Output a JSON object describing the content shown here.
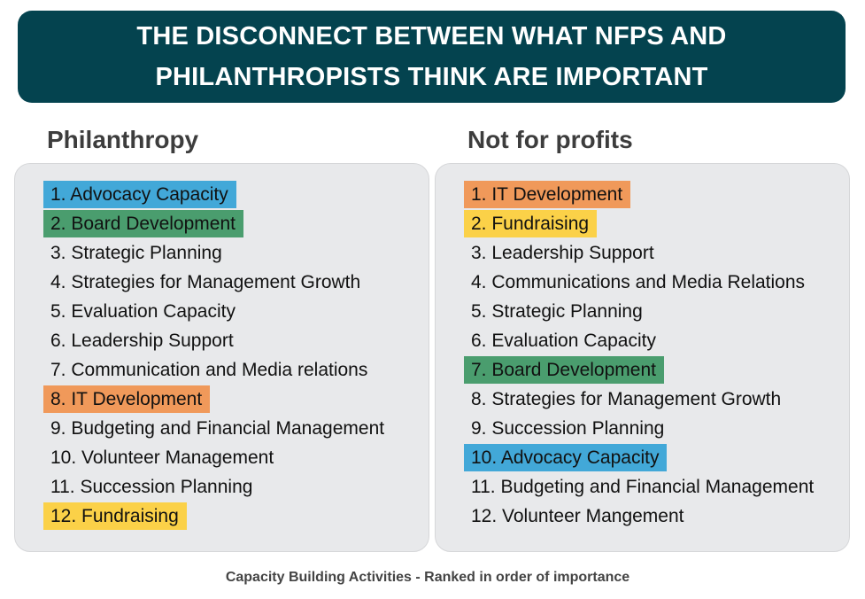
{
  "title": {
    "line1": "THE DISCONNECT BETWEEN WHAT NFPS AND",
    "line2": "PHILANTHROPISTS THINK ARE IMPORTANT"
  },
  "colors": {
    "title_bg": "#04434f",
    "advocacy": "#42a8d8",
    "board": "#4a9d6e",
    "it": "#f0995a",
    "fundraising": "#fbd148"
  },
  "philanthropy": {
    "heading": "Philanthropy",
    "items": [
      {
        "text": "1. Advocacy Capacity",
        "highlight": "#42a8d8"
      },
      {
        "text": "2. Board Development",
        "highlight": "#4a9d6e"
      },
      {
        "text": "3. Strategic Planning",
        "highlight": ""
      },
      {
        "text": "4. Strategies for Management Growth",
        "highlight": ""
      },
      {
        "text": "5. Evaluation Capacity",
        "highlight": ""
      },
      {
        "text": "6. Leadership Support",
        "highlight": ""
      },
      {
        "text": "7. Communication and Media relations",
        "highlight": ""
      },
      {
        "text": "8. IT Development",
        "highlight": "#f0995a"
      },
      {
        "text": "9. Budgeting and Financial Management",
        "highlight": ""
      },
      {
        "text": "10. Volunteer Management",
        "highlight": ""
      },
      {
        "text": "11. Succession Planning",
        "highlight": ""
      },
      {
        "text": "12. Fundraising",
        "highlight": "#fbd148"
      }
    ]
  },
  "nfp": {
    "heading": "Not for profits",
    "items": [
      {
        "text": "1. IT Development",
        "highlight": "#f0995a"
      },
      {
        "text": "2. Fundraising",
        "highlight": "#fbd148"
      },
      {
        "text": "3. Leadership Support",
        "highlight": ""
      },
      {
        "text": "4. Communications and Media Relations",
        "highlight": ""
      },
      {
        "text": "5. Strategic Planning",
        "highlight": ""
      },
      {
        "text": "6. Evaluation Capacity",
        "highlight": ""
      },
      {
        "text": "7. Board Development",
        "highlight": "#4a9d6e"
      },
      {
        "text": "8. Strategies for Management Growth",
        "highlight": ""
      },
      {
        "text": "9. Succession Planning",
        "highlight": ""
      },
      {
        "text": "10. Advocacy Capacity",
        "highlight": "#42a8d8"
      },
      {
        "text": "11. Budgeting and Financial Management",
        "highlight": ""
      },
      {
        "text": "12. Volunteer Mangement",
        "highlight": ""
      }
    ]
  },
  "footer": "Capacity Building Activities - Ranked in order of importance"
}
